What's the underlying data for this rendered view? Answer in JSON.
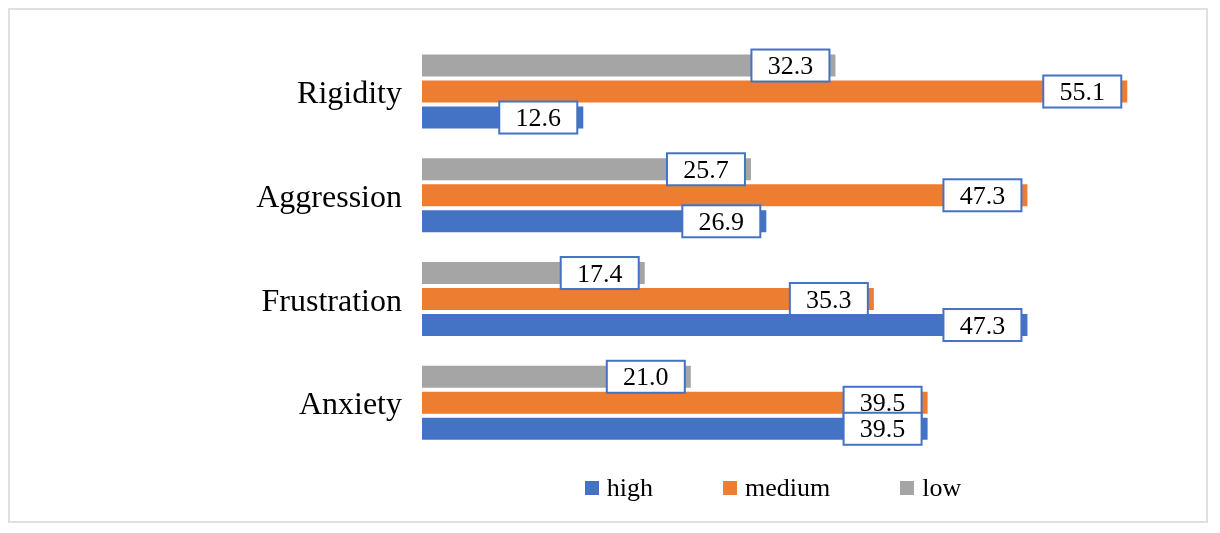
{
  "chart_data": {
    "type": "bar",
    "orientation": "horizontal",
    "categories": [
      "Rigidity",
      "Aggression",
      "Frustration",
      "Anxiety"
    ],
    "series": [
      {
        "name": "high",
        "color": "#4472c4",
        "values": [
          12.6,
          26.9,
          47.3,
          39.5
        ],
        "value_labels": [
          "12.6",
          "26.9",
          "47.3",
          "39.5"
        ]
      },
      {
        "name": "medium",
        "color": "#ed7d31",
        "values": [
          55.1,
          47.3,
          35.3,
          39.5
        ],
        "value_labels": [
          "55.1",
          "47.3",
          "35.3",
          "39.5"
        ]
      },
      {
        "name": "low",
        "color": "#a5a5a5",
        "values": [
          32.3,
          25.7,
          17.4,
          21.0
        ],
        "value_labels": [
          "32.3",
          "25.7",
          "17.4",
          "21.0"
        ]
      }
    ],
    "tick_labels": "y",
    "legend": "bottom"
  }
}
